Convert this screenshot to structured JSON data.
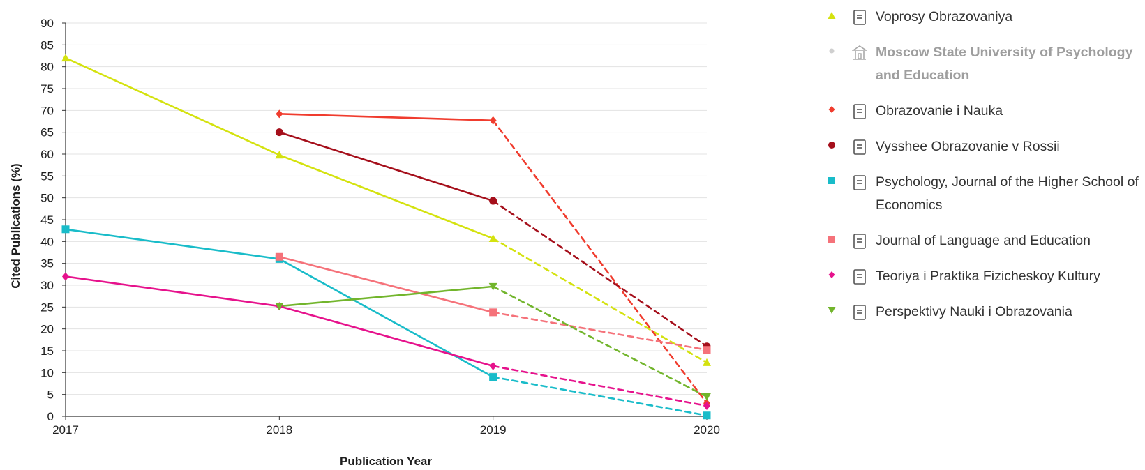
{
  "chart_data": {
    "type": "line",
    "xlabel": "Publication Year",
    "ylabel": "Cited Publications (%)",
    "x": [
      2017,
      2018,
      2019,
      2020
    ],
    "x_tick_labels": [
      "2017",
      "2018",
      "2019",
      "2020"
    ],
    "ylim": [
      0,
      90
    ],
    "y_ticks": [
      0,
      5,
      10,
      15,
      20,
      25,
      30,
      35,
      40,
      45,
      50,
      55,
      60,
      65,
      70,
      75,
      80,
      85,
      90
    ],
    "y_tick_labels": [
      "0",
      "5",
      "10",
      "15",
      "20",
      "25",
      "30",
      "35",
      "40",
      "45",
      "50",
      "55",
      "60",
      "65",
      "70",
      "75",
      "80",
      "85",
      "90"
    ],
    "grid": true,
    "legend_position": "right",
    "line_style_note": "segments into 2020 are dashed",
    "series": [
      {
        "name": "Voprosy Obrazovaniya",
        "color": "#d4e20f",
        "marker": "triangle-up",
        "icon": "journal-icon",
        "values": [
          82,
          59.8,
          40.7,
          12.3
        ]
      },
      {
        "name": "Moscow State University of Psychology and Education",
        "color": "#c8c8c8",
        "marker": "circle",
        "icon": "institution-icon",
        "muted": true,
        "values": [
          null,
          null,
          null,
          null
        ]
      },
      {
        "name": "Obrazovanie i Nauka",
        "color": "#f03c2e",
        "marker": "diamond",
        "icon": "journal-icon",
        "values": [
          null,
          69.2,
          67.7,
          3
        ]
      },
      {
        "name": "Vysshee Obrazovanie v Rossii",
        "color": "#a50f1b",
        "marker": "circle",
        "icon": "journal-icon",
        "values": [
          null,
          65,
          49.3,
          16
        ]
      },
      {
        "name": "Psychology, Journal of the Higher School of Economics",
        "color": "#19bcc9",
        "marker": "square",
        "icon": "journal-icon",
        "values": [
          42.8,
          36,
          9,
          0.2
        ]
      },
      {
        "name": "Journal of Language and Education",
        "color": "#f5727a",
        "marker": "square",
        "icon": "journal-icon",
        "values": [
          null,
          36.5,
          23.8,
          15.2
        ]
      },
      {
        "name": "Teoriya i Praktika Fizicheskoy Kultury",
        "color": "#e6128c",
        "marker": "diamond",
        "icon": "journal-icon",
        "values": [
          32,
          25.2,
          11.5,
          2.4
        ]
      },
      {
        "name": "Perspektivy Nauki i Obrazovania",
        "color": "#72b52c",
        "marker": "triangle-down",
        "icon": "journal-icon",
        "values": [
          null,
          25.2,
          29.7,
          4.5
        ]
      }
    ]
  },
  "legend": {
    "items": [
      {
        "label": "Voprosy Obrazovaniya"
      },
      {
        "label": "Moscow State University of Psychology and Education"
      },
      {
        "label": "Obrazovanie i Nauka"
      },
      {
        "label": "Vysshee Obrazovanie v Rossii"
      },
      {
        "label": "Psychology, Journal of the Higher School of Economics"
      },
      {
        "label": "Journal of Language and Education"
      },
      {
        "label": "Teoriya i Praktika Fizicheskoy Kultury"
      },
      {
        "label": "Perspektivy Nauki i Obrazovania"
      }
    ]
  }
}
